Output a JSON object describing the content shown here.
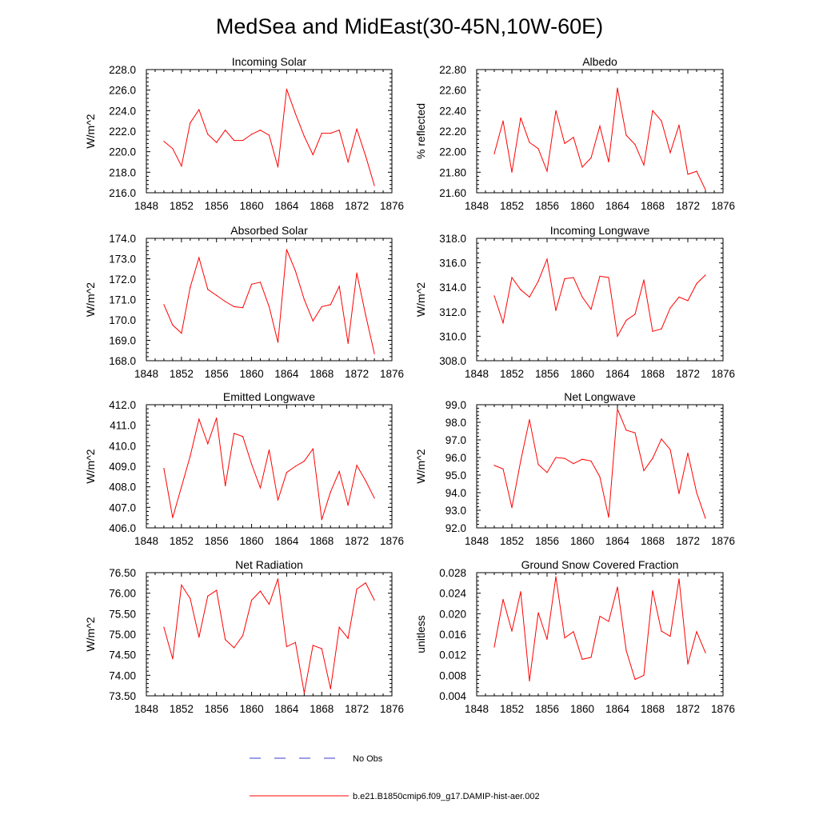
{
  "figure": {
    "title": "MedSea and MidEast(30-45N,10W-60E)"
  },
  "legend": {
    "items": [
      {
        "label": "No Obs",
        "color": "#3b3bcc",
        "style": "dashed"
      },
      {
        "label": "b.e21.B1850cmip6.f09_g17.DAMIP-hist-aer.002",
        "color": "#ff0000",
        "style": "solid"
      }
    ]
  },
  "chart_data": [
    {
      "type": "line",
      "title": "Incoming Solar",
      "xlabel": "",
      "ylabel": "W/m^2",
      "xlim": [
        1848,
        1876
      ],
      "ylim": [
        216.0,
        228.0
      ],
      "xticks": [
        1848,
        1852,
        1856,
        1860,
        1864,
        1868,
        1872,
        1876
      ],
      "yticks": [
        216.0,
        218.0,
        220.0,
        222.0,
        224.0,
        226.0,
        228.0
      ],
      "ytick_decimals": 1,
      "series": [
        {
          "color": "#ff0000",
          "x": [
            1850,
            1851,
            1852,
            1853,
            1854,
            1855,
            1856,
            1857,
            1858,
            1859,
            1860,
            1861,
            1862,
            1863,
            1864,
            1865,
            1866,
            1867,
            1868,
            1869,
            1870,
            1871,
            1872,
            1873,
            1874
          ],
          "values": [
            221.0,
            220.3,
            218.6,
            222.8,
            224.1,
            221.7,
            220.9,
            222.1,
            221.1,
            221.1,
            221.7,
            222.1,
            221.6,
            218.5,
            226.1,
            223.7,
            221.5,
            219.7,
            221.8,
            221.8,
            222.1,
            219.0,
            222.2,
            219.6,
            216.7
          ]
        }
      ]
    },
    {
      "type": "line",
      "title": "Albedo",
      "xlabel": "",
      "ylabel": "% reflected",
      "xlim": [
        1848,
        1876
      ],
      "ylim": [
        21.6,
        22.8
      ],
      "xticks": [
        1848,
        1852,
        1856,
        1860,
        1864,
        1868,
        1872,
        1876
      ],
      "yticks": [
        21.6,
        21.8,
        22.0,
        22.2,
        22.4,
        22.6,
        22.8
      ],
      "ytick_decimals": 2,
      "series": [
        {
          "color": "#ff0000",
          "x": [
            1850,
            1851,
            1852,
            1853,
            1854,
            1855,
            1856,
            1857,
            1858,
            1859,
            1860,
            1861,
            1862,
            1863,
            1864,
            1865,
            1866,
            1867,
            1868,
            1869,
            1870,
            1871,
            1872,
            1873,
            1874
          ],
          "values": [
            21.98,
            22.3,
            21.8,
            22.33,
            22.09,
            22.03,
            21.81,
            22.4,
            22.08,
            22.14,
            21.85,
            21.94,
            22.25,
            21.9,
            22.62,
            22.16,
            22.07,
            21.87,
            22.4,
            22.3,
            21.99,
            22.26,
            21.78,
            21.81,
            21.63
          ]
        }
      ]
    },
    {
      "type": "line",
      "title": "Absorbed Solar",
      "xlabel": "",
      "ylabel": "W/m^2",
      "xlim": [
        1848,
        1876
      ],
      "ylim": [
        168.0,
        174.0
      ],
      "xticks": [
        1848,
        1852,
        1856,
        1860,
        1864,
        1868,
        1872,
        1876
      ],
      "yticks": [
        168.0,
        169.0,
        170.0,
        171.0,
        172.0,
        173.0,
        174.0
      ],
      "ytick_decimals": 1,
      "series": [
        {
          "color": "#ff0000",
          "x": [
            1850,
            1851,
            1852,
            1853,
            1854,
            1855,
            1856,
            1857,
            1858,
            1859,
            1860,
            1861,
            1862,
            1863,
            1864,
            1865,
            1866,
            1867,
            1868,
            1869,
            1870,
            1871,
            1872,
            1873,
            1874
          ],
          "values": [
            170.75,
            169.75,
            169.35,
            171.6,
            173.05,
            171.5,
            171.2,
            170.9,
            170.65,
            170.6,
            171.75,
            171.85,
            170.65,
            168.9,
            173.45,
            172.4,
            171.0,
            169.95,
            170.65,
            170.75,
            171.65,
            168.85,
            172.3,
            170.25,
            168.35
          ]
        }
      ]
    },
    {
      "type": "line",
      "title": "Incoming Longwave",
      "xlabel": "",
      "ylabel": "W/m^2",
      "xlim": [
        1848,
        1876
      ],
      "ylim": [
        308.0,
        318.0
      ],
      "xticks": [
        1848,
        1852,
        1856,
        1860,
        1864,
        1868,
        1872,
        1876
      ],
      "yticks": [
        308.0,
        310.0,
        312.0,
        314.0,
        316.0,
        318.0
      ],
      "ytick_decimals": 1,
      "series": [
        {
          "color": "#ff0000",
          "x": [
            1850,
            1851,
            1852,
            1853,
            1854,
            1855,
            1856,
            1857,
            1858,
            1859,
            1860,
            1861,
            1862,
            1863,
            1864,
            1865,
            1866,
            1867,
            1868,
            1869,
            1870,
            1871,
            1872,
            1873,
            1874
          ],
          "values": [
            313.3,
            311.1,
            314.8,
            313.8,
            313.2,
            314.5,
            316.3,
            312.1,
            314.7,
            314.8,
            313.2,
            312.2,
            314.9,
            314.8,
            310.0,
            311.3,
            311.8,
            314.6,
            310.4,
            310.6,
            312.3,
            313.2,
            312.9,
            314.3,
            315.0
          ]
        }
      ]
    },
    {
      "type": "line",
      "title": "Emitted Longwave",
      "xlabel": "",
      "ylabel": "W/m^2",
      "xlim": [
        1848,
        1876
      ],
      "ylim": [
        406.0,
        412.0
      ],
      "xticks": [
        1848,
        1852,
        1856,
        1860,
        1864,
        1868,
        1872,
        1876
      ],
      "yticks": [
        406.0,
        407.0,
        408.0,
        409.0,
        410.0,
        411.0,
        412.0
      ],
      "ytick_decimals": 1,
      "series": [
        {
          "color": "#ff0000",
          "x": [
            1850,
            1851,
            1852,
            1853,
            1854,
            1855,
            1856,
            1857,
            1858,
            1859,
            1860,
            1861,
            1862,
            1863,
            1864,
            1865,
            1866,
            1867,
            1868,
            1869,
            1870,
            1871,
            1872,
            1873,
            1874
          ],
          "values": [
            408.9,
            406.5,
            408.0,
            409.5,
            411.3,
            410.1,
            411.35,
            408.05,
            410.6,
            410.45,
            409.1,
            407.95,
            409.8,
            407.35,
            408.7,
            409.0,
            409.25,
            409.85,
            406.4,
            407.75,
            408.75,
            407.1,
            409.05,
            408.3,
            407.45
          ]
        }
      ]
    },
    {
      "type": "line",
      "title": "Net Longwave",
      "xlabel": "",
      "ylabel": "W/m^2",
      "xlim": [
        1848,
        1876
      ],
      "ylim": [
        92.0,
        99.0
      ],
      "xticks": [
        1848,
        1852,
        1856,
        1860,
        1864,
        1868,
        1872,
        1876
      ],
      "yticks": [
        92.0,
        93.0,
        94.0,
        95.0,
        96.0,
        97.0,
        98.0,
        99.0
      ],
      "ytick_decimals": 1,
      "series": [
        {
          "color": "#ff0000",
          "x": [
            1850,
            1851,
            1852,
            1853,
            1854,
            1855,
            1856,
            1857,
            1858,
            1859,
            1860,
            1861,
            1862,
            1863,
            1864,
            1865,
            1866,
            1867,
            1868,
            1869,
            1870,
            1871,
            1872,
            1873,
            1874
          ],
          "values": [
            95.55,
            95.35,
            93.15,
            95.8,
            98.15,
            95.6,
            95.15,
            96.0,
            95.95,
            95.65,
            95.9,
            95.8,
            94.9,
            92.6,
            98.75,
            97.55,
            97.4,
            95.25,
            95.95,
            97.05,
            96.45,
            93.95,
            96.25,
            94.0,
            92.55
          ]
        }
      ]
    },
    {
      "type": "line",
      "title": "Net Radiation",
      "xlabel": "",
      "ylabel": "W/m^2",
      "xlim": [
        1848,
        1876
      ],
      "ylim": [
        73.5,
        76.5
      ],
      "xticks": [
        1848,
        1852,
        1856,
        1860,
        1864,
        1868,
        1872,
        1876
      ],
      "yticks": [
        73.5,
        74.0,
        74.5,
        75.0,
        75.5,
        76.0,
        76.5
      ],
      "ytick_decimals": 2,
      "series": [
        {
          "color": "#ff0000",
          "x": [
            1850,
            1851,
            1852,
            1853,
            1854,
            1855,
            1856,
            1857,
            1858,
            1859,
            1860,
            1861,
            1862,
            1863,
            1864,
            1865,
            1866,
            1867,
            1868,
            1869,
            1870,
            1871,
            1872,
            1873,
            1874
          ],
          "values": [
            75.17,
            74.4,
            76.2,
            75.87,
            74.93,
            75.93,
            76.07,
            74.87,
            74.67,
            74.97,
            75.83,
            76.05,
            75.73,
            76.35,
            74.7,
            74.8,
            73.57,
            74.73,
            74.65,
            73.67,
            75.17,
            74.9,
            76.1,
            76.25,
            75.83
          ]
        }
      ]
    },
    {
      "type": "line",
      "title": "Ground Snow Covered Fraction",
      "xlabel": "",
      "ylabel": "unitless",
      "xlim": [
        1848,
        1876
      ],
      "ylim": [
        0.004,
        0.028
      ],
      "xticks": [
        1848,
        1852,
        1856,
        1860,
        1864,
        1868,
        1872,
        1876
      ],
      "yticks": [
        0.004,
        0.008,
        0.012,
        0.016,
        0.02,
        0.024,
        0.028
      ],
      "ytick_decimals": 3,
      "series": [
        {
          "color": "#ff0000",
          "x": [
            1850,
            1851,
            1852,
            1853,
            1854,
            1855,
            1856,
            1857,
            1858,
            1859,
            1860,
            1861,
            1862,
            1863,
            1864,
            1865,
            1866,
            1867,
            1868,
            1869,
            1870,
            1871,
            1872,
            1873,
            1874
          ],
          "values": [
            0.0135,
            0.0228,
            0.0166,
            0.0243,
            0.0069,
            0.0202,
            0.015,
            0.0272,
            0.0153,
            0.0165,
            0.0111,
            0.0115,
            0.0195,
            0.0185,
            0.0252,
            0.0128,
            0.0072,
            0.008,
            0.0245,
            0.0166,
            0.0156,
            0.0268,
            0.0102,
            0.0165,
            0.0124
          ]
        }
      ]
    }
  ]
}
